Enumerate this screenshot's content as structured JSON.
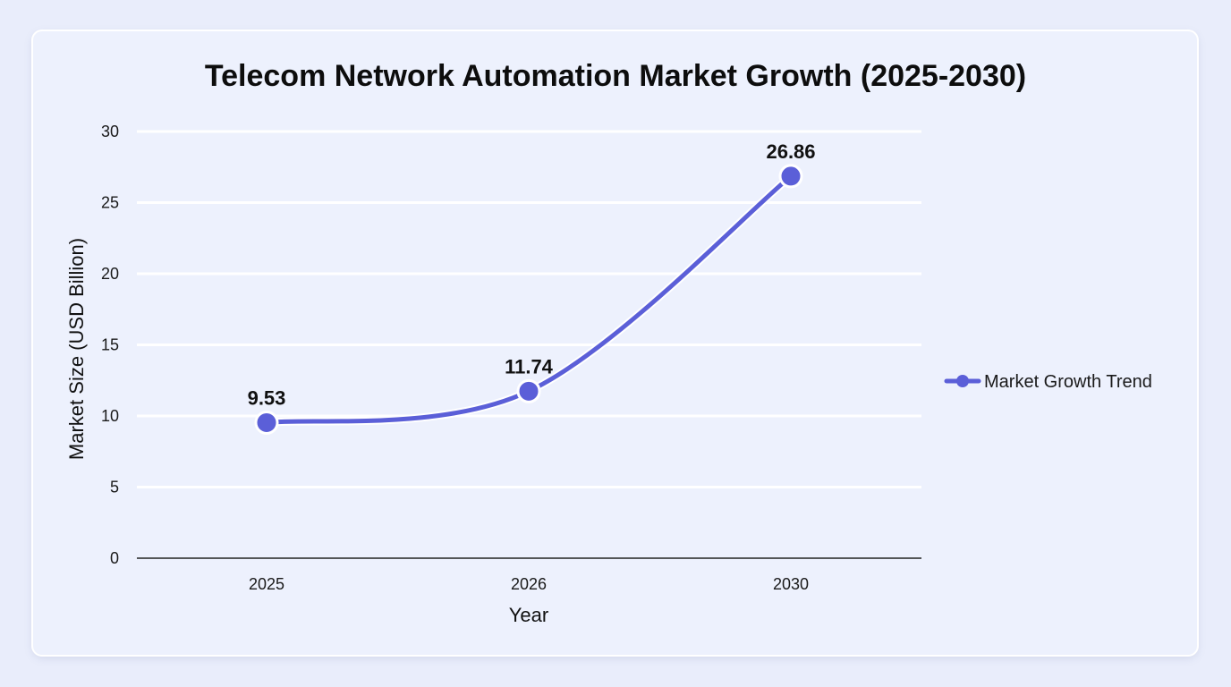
{
  "chart_data": {
    "type": "line",
    "title": "Telecom Network Automation Market Growth (2025-2030)",
    "xlabel": "Year",
    "ylabel": "Market Size (USD Billion)",
    "categories": [
      "2025",
      "2026",
      "2030"
    ],
    "series": [
      {
        "name": "Market Growth Trend",
        "values": [
          9.53,
          11.74,
          26.86
        ],
        "labels": [
          "9.53",
          "11.74",
          "26.86"
        ],
        "color": "#5b5fd8"
      }
    ],
    "ylim": [
      0,
      30
    ],
    "yticks": [
      "0",
      "5",
      "10",
      "15",
      "20",
      "25",
      "30"
    ],
    "grid": true,
    "legend": "right"
  }
}
